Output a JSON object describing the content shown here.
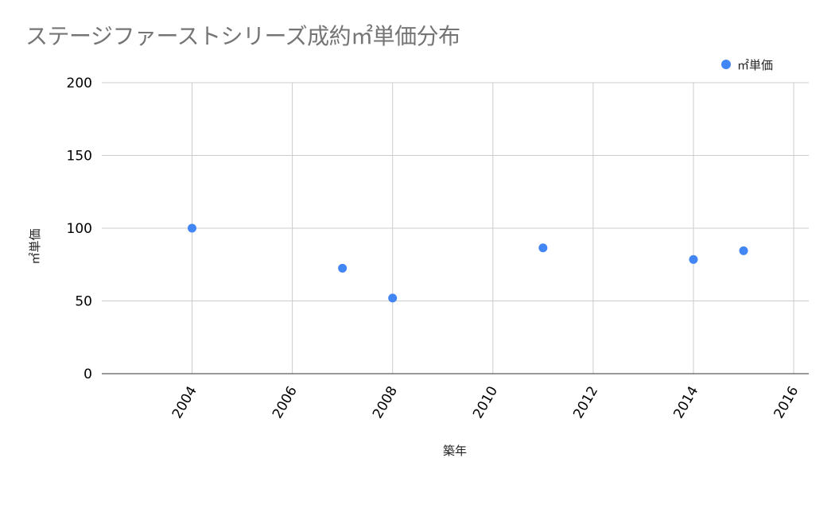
{
  "chart_data": {
    "type": "scatter",
    "title": "ステージファーストシリーズ成約㎡単価分布",
    "xlabel": "築年",
    "ylabel": "㎡単価",
    "xlim": [
      2002.2,
      2016.3
    ],
    "ylim": [
      0,
      200
    ],
    "x_ticks": [
      "2004",
      "2006",
      "2008",
      "2010",
      "2012",
      "2014",
      "2016"
    ],
    "y_ticks": [
      "0",
      "50",
      "100",
      "150",
      "200"
    ],
    "grid": true,
    "legend_position": "top-right",
    "series": [
      {
        "name": "㎡単価",
        "color": "#4285F4",
        "points": [
          {
            "x": 2004,
            "y": 100
          },
          {
            "x": 2007,
            "y": 72.5
          },
          {
            "x": 2008,
            "y": 52
          },
          {
            "x": 2011,
            "y": 86.5
          },
          {
            "x": 2014,
            "y": 78.5
          },
          {
            "x": 2015,
            "y": 84.5
          }
        ]
      }
    ]
  }
}
